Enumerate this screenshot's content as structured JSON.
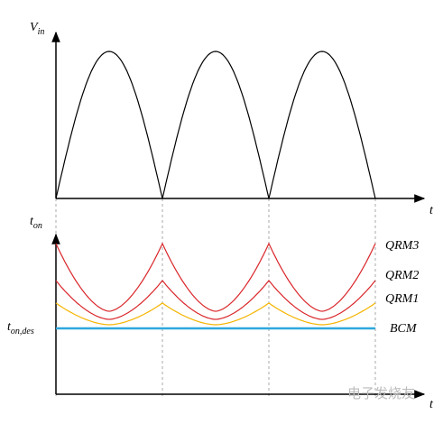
{
  "labels": {
    "vin": {
      "main": "V",
      "sub": "in"
    },
    "t_top": "t",
    "ton": {
      "main": "t",
      "sub": "on"
    },
    "t_bottom": "t",
    "qrm3": "QRM3",
    "qrm2": "QRM2",
    "qrm1": "QRM1",
    "tondes": {
      "main": "t",
      "sub": "on,des"
    },
    "bcm": "BCM"
  },
  "watermark": "电子发烧友"
}
